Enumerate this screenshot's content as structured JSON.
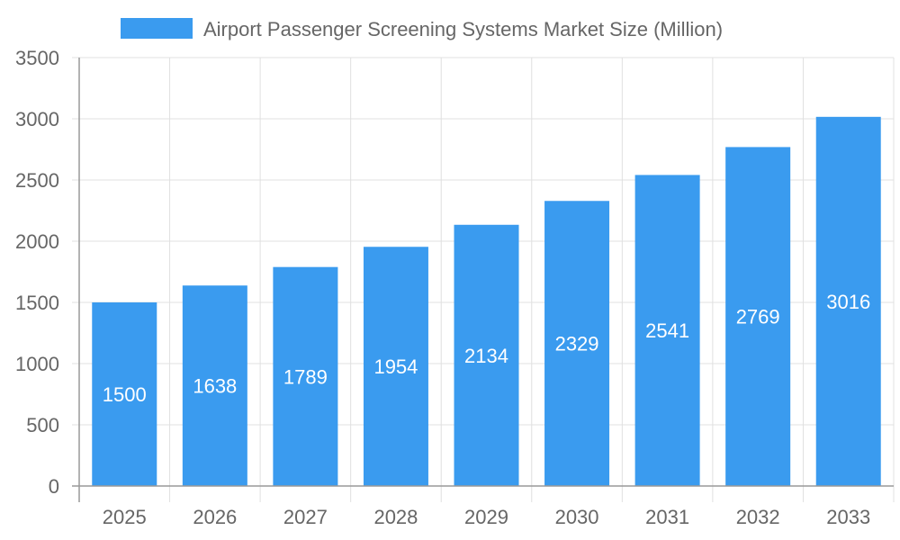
{
  "chart_data": {
    "type": "bar",
    "title": "",
    "xlabel": "",
    "ylabel": "",
    "categories": [
      "2025",
      "2026",
      "2027",
      "2028",
      "2029",
      "2030",
      "2031",
      "2032",
      "2033"
    ],
    "series": [
      {
        "name": "Airport Passenger Screening Systems Market Size (Million)",
        "values": [
          1500,
          1638,
          1789,
          1954,
          2134,
          2329,
          2541,
          2769,
          3016
        ]
      }
    ],
    "ylim": [
      0,
      3500
    ],
    "yticks": [
      0,
      500,
      1000,
      1500,
      2000,
      2500,
      3000,
      3500
    ],
    "grid": true,
    "legend_position": "top",
    "data_labels": true,
    "colors": {
      "bar": "#3a9bef",
      "grid": "#e0e0e0",
      "axis": "#999999",
      "text": "#666666"
    }
  }
}
